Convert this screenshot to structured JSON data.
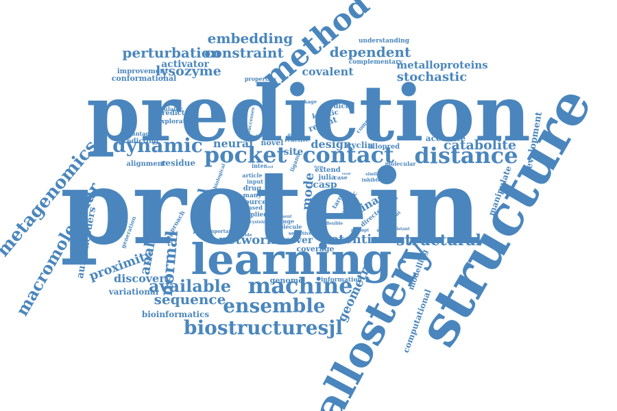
{
  "cloud": {
    "color": "#4a86bd",
    "words": [
      {
        "text": "prediction",
        "size_class": "xl"
      },
      {
        "text": "protein",
        "size_class": "xl"
      },
      {
        "text": "learning",
        "size_class": "l"
      },
      {
        "text": "structure",
        "size_class": "l"
      },
      {
        "text": "allostery",
        "size_class": "l"
      },
      {
        "text": "method",
        "size_class": "m"
      },
      {
        "text": "pocket",
        "size_class": "m"
      },
      {
        "text": "contact",
        "size_class": "m"
      },
      {
        "text": "distance",
        "size_class": "m"
      },
      {
        "text": "dynamic",
        "size_class": "m"
      },
      {
        "text": "machine",
        "size_class": "m"
      },
      {
        "text": "ensemble",
        "size_class": "m"
      },
      {
        "text": "biostructuresjl",
        "size_class": "m"
      },
      {
        "text": "embedding",
        "size_class": "s"
      },
      {
        "text": "constraint",
        "size_class": "s"
      },
      {
        "text": "perturbation",
        "size_class": "s"
      },
      {
        "text": "dependent",
        "size_class": "s"
      },
      {
        "text": "lysozyme",
        "size_class": "s"
      },
      {
        "text": "activator",
        "size_class": "s"
      },
      {
        "text": "metalloproteins",
        "size_class": "s"
      },
      {
        "text": "stochastic",
        "size_class": "s"
      },
      {
        "text": "covalent",
        "size_class": "s"
      },
      {
        "text": "catabolite",
        "size_class": "s"
      },
      {
        "text": "metagenomics",
        "size_class": "s"
      },
      {
        "text": "macromolecular",
        "size_class": "s"
      },
      {
        "text": "network",
        "size_class": "s"
      },
      {
        "text": "potential",
        "size_class": "s"
      },
      {
        "text": "structural",
        "size_class": "s"
      },
      {
        "text": "available",
        "size_class": "s"
      },
      {
        "text": "sequence",
        "size_class": "s"
      },
      {
        "text": "neural",
        "size_class": "s"
      },
      {
        "text": "design",
        "size_class": "s"
      },
      {
        "text": "normal",
        "size_class": "s"
      },
      {
        "text": "analysis",
        "size_class": "s"
      },
      {
        "text": "proximity",
        "size_class": "s"
      },
      {
        "text": "discovery",
        "size_class": "s"
      },
      {
        "text": "model",
        "size_class": "s"
      },
      {
        "text": "mode",
        "size_class": "s"
      },
      {
        "text": "geometry",
        "size_class": "s"
      },
      {
        "text": "kinase",
        "size_class": "s"
      },
      {
        "text": "development",
        "size_class": "xs"
      },
      {
        "text": "manipulate",
        "size_class": "xs"
      },
      {
        "text": "computational",
        "size_class": "xs"
      },
      {
        "text": "modelling",
        "size_class": "xs"
      },
      {
        "text": "autoencoders",
        "size_class": "xs"
      },
      {
        "text": "variational",
        "size_class": "xs"
      },
      {
        "text": "bioinformatics",
        "size_class": "xs"
      },
      {
        "text": "genome",
        "size_class": "xs"
      },
      {
        "text": "information",
        "size_class": "xs"
      },
      {
        "text": "server",
        "size_class": "xs"
      },
      {
        "text": "coverage",
        "size_class": "xs"
      },
      {
        "text": "accurate",
        "size_class": "xs"
      },
      {
        "text": "residue",
        "size_class": "xs"
      },
      {
        "text": "alignment",
        "size_class": "xs"
      },
      {
        "text": "predicting",
        "size_class": "xs"
      },
      {
        "text": "advantage",
        "size_class": "xs"
      },
      {
        "text": "predicted",
        "size_class": "xs"
      },
      {
        "text": "exploration",
        "size_class": "xs"
      },
      {
        "text": "improvement",
        "size_class": "xs"
      },
      {
        "text": "conformational",
        "size_class": "xs"
      },
      {
        "text": "modulator",
        "size_class": "xs"
      },
      {
        "text": "properties",
        "size_class": "xs"
      },
      {
        "text": "understanding",
        "size_class": "xs"
      },
      {
        "text": "complementary",
        "size_class": "xs"
      },
      {
        "text": "predict",
        "size_class": "xs"
      },
      {
        "text": "kinetic",
        "size_class": "xs"
      },
      {
        "text": "recent",
        "size_class": "xs"
      },
      {
        "text": "comparable",
        "size_class": "xs"
      },
      {
        "text": "package",
        "size_class": "xs"
      },
      {
        "text": "novel",
        "size_class": "xs"
      },
      {
        "text": "site",
        "size_class": "xs"
      },
      {
        "text": "cyclin",
        "size_class": "xs"
      },
      {
        "text": "allopred",
        "size_class": "xs"
      },
      {
        "text": "molecular",
        "size_class": "xs"
      },
      {
        "text": "extend",
        "size_class": "xs"
      },
      {
        "text": "julia",
        "size_class": "xs"
      },
      {
        "text": "case",
        "size_class": "xs"
      },
      {
        "text": "casp",
        "size_class": "xs"
      },
      {
        "text": "target",
        "size_class": "xs"
      },
      {
        "text": "atomic",
        "size_class": "xs"
      },
      {
        "text": "inhibitor",
        "size_class": "xs"
      },
      {
        "text": "directed",
        "size_class": "xs"
      },
      {
        "text": "experiment",
        "size_class": "xs"
      },
      {
        "text": "families",
        "size_class": "xs"
      },
      {
        "text": "flexible",
        "size_class": "xs"
      },
      {
        "text": "attempt",
        "size_class": "xs"
      },
      {
        "text": "approach",
        "size_class": "xs"
      },
      {
        "text": "biological",
        "size_class": "xs"
      },
      {
        "text": "ligand",
        "size_class": "xs"
      },
      {
        "text": "article",
        "size_class": "xs"
      },
      {
        "text": "input",
        "size_class": "xs"
      },
      {
        "text": "drug",
        "size_class": "xs"
      },
      {
        "text": "many",
        "size_class": "xs"
      },
      {
        "text": "source",
        "size_class": "xs"
      },
      {
        "text": "based",
        "size_class": "xs"
      },
      {
        "text": "applied",
        "size_class": "xs"
      },
      {
        "text": "cysteine",
        "size_class": "xs"
      },
      {
        "text": "present",
        "size_class": "xs"
      },
      {
        "text": "change",
        "size_class": "xs"
      },
      {
        "text": "molecule",
        "size_class": "xs"
      },
      {
        "text": "selective",
        "size_class": "xs"
      },
      {
        "text": "important",
        "size_class": "xs"
      },
      {
        "text": "provide",
        "size_class": "xs"
      },
      {
        "text": "generation",
        "size_class": "xs"
      },
      {
        "text": "successes",
        "size_class": "xs"
      },
      {
        "text": "reactive",
        "size_class": "xs"
      },
      {
        "text": "domain",
        "size_class": "xs"
      },
      {
        "text": "human",
        "size_class": "xs"
      },
      {
        "text": "inter",
        "size_class": "xs"
      },
      {
        "text": "read",
        "size_class": "xs"
      },
      {
        "text": "similar",
        "size_class": "xs"
      },
      {
        "text": "distant",
        "size_class": "xs"
      },
      {
        "text": "tool",
        "size_class": "xs"
      },
      {
        "text": "form",
        "size_class": "xs"
      }
    ]
  }
}
